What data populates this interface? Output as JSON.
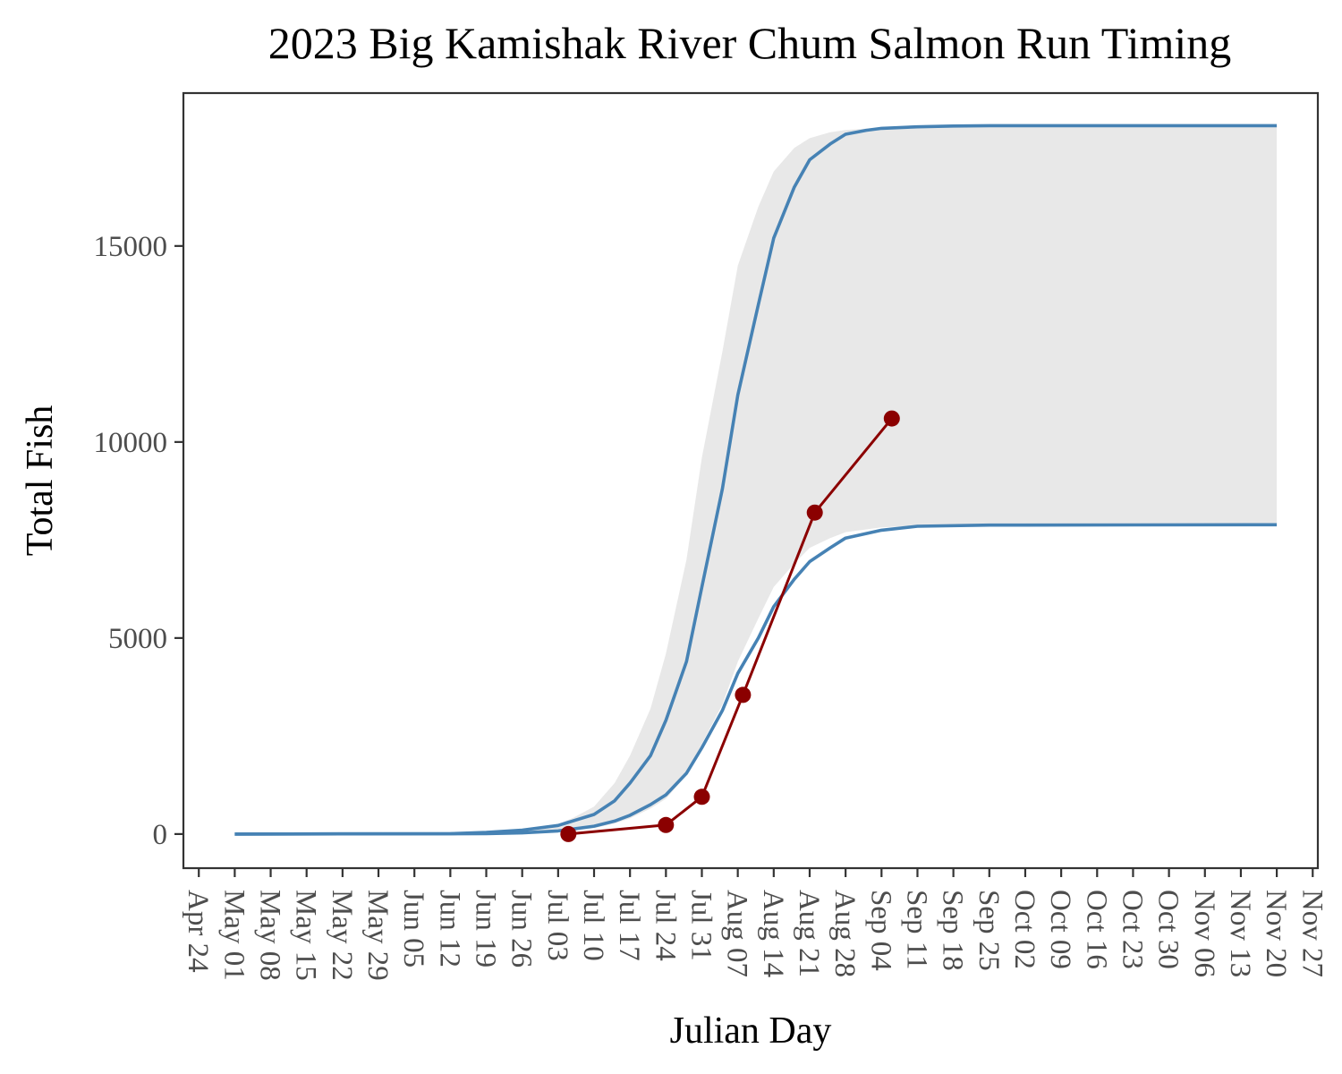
{
  "chart_data": {
    "type": "line",
    "title": "2023 Big Kamishak River Chum Salmon Run Timing",
    "xlabel": "Julian Day",
    "ylabel": "Total Fish",
    "x_axis": "date",
    "xlim": [
      "2023-04-21",
      "2023-11-28"
    ],
    "ylim": [
      -870,
      18900
    ],
    "y_ticks": [
      0,
      5000,
      10000,
      15000
    ],
    "x_ticks": [
      "2023-04-24",
      "2023-05-01",
      "2023-05-08",
      "2023-05-15",
      "2023-05-22",
      "2023-05-29",
      "2023-06-05",
      "2023-06-12",
      "2023-06-19",
      "2023-06-26",
      "2023-07-03",
      "2023-07-10",
      "2023-07-17",
      "2023-07-24",
      "2023-07-31",
      "2023-08-07",
      "2023-08-14",
      "2023-08-21",
      "2023-08-28",
      "2023-09-04",
      "2023-09-11",
      "2023-09-18",
      "2023-09-25",
      "2023-10-02",
      "2023-10-09",
      "2023-10-16",
      "2023-10-23",
      "2023-10-30",
      "2023-11-06",
      "2023-11-13",
      "2023-11-20",
      "2023-11-27"
    ],
    "x_tick_labels": [
      "Apr 24",
      "May 01",
      "May 08",
      "May 15",
      "May 22",
      "May 29",
      "Jun 05",
      "Jun 12",
      "Jun 19",
      "Jun 26",
      "Jul 03",
      "Jul 10",
      "Jul 17",
      "Jul 24",
      "Jul 31",
      "Aug 07",
      "Aug 14",
      "Aug 21",
      "Aug 28",
      "Sep 04",
      "Sep 11",
      "Sep 18",
      "Sep 25",
      "Oct 02",
      "Oct 09",
      "Oct 16",
      "Oct 23",
      "Oct 30",
      "Nov 06",
      "Nov 13",
      "Nov 20",
      "Nov 27"
    ],
    "grid": false,
    "colors": {
      "band": "#e8e8e8",
      "curve": "#4682b4",
      "observed": "#8b0000",
      "axis": "#333333",
      "tick_text": "#4d4d4d"
    },
    "band": {
      "x": [
        "2023-05-01",
        "2023-06-19",
        "2023-06-26",
        "2023-07-03",
        "2023-07-06",
        "2023-07-10",
        "2023-07-14",
        "2023-07-17",
        "2023-07-21",
        "2023-07-24",
        "2023-07-28",
        "2023-07-31",
        "2023-08-04",
        "2023-08-07",
        "2023-08-11",
        "2023-08-14",
        "2023-08-18",
        "2023-08-21",
        "2023-08-25",
        "2023-08-28",
        "2023-09-04",
        "2023-09-11",
        "2023-09-25",
        "2023-11-20"
      ],
      "upper": [
        0,
        30,
        100,
        250,
        420,
        700,
        1300,
        2000,
        3200,
        4600,
        7000,
        9600,
        12300,
        14500,
        16000,
        16900,
        17500,
        17750,
        17900,
        17960,
        18020,
        18050,
        18060,
        18060
      ],
      "lower": [
        0,
        0,
        20,
        50,
        80,
        150,
        270,
        400,
        650,
        900,
        1500,
        2300,
        3300,
        4400,
        5500,
        6300,
        6900,
        7300,
        7550,
        7700,
        7820,
        7870,
        7890,
        7900
      ]
    },
    "series": [
      {
        "x": [
          "2023-05-01",
          "2023-06-12",
          "2023-06-19",
          "2023-06-26",
          "2023-07-03",
          "2023-07-10",
          "2023-07-14",
          "2023-07-17",
          "2023-07-21",
          "2023-07-24",
          "2023-07-28",
          "2023-07-31",
          "2023-08-04",
          "2023-08-07",
          "2023-08-11",
          "2023-08-14",
          "2023-08-18",
          "2023-08-21",
          "2023-08-25",
          "2023-08-28",
          "2023-09-01",
          "2023-09-04",
          "2023-09-11",
          "2023-09-18",
          "2023-09-25",
          "2023-11-20"
        ],
        "values": [
          0,
          10,
          40,
          100,
          220,
          500,
          850,
          1300,
          2000,
          2900,
          4400,
          6300,
          8800,
          11200,
          13500,
          15200,
          16500,
          17200,
          17600,
          17850,
          17950,
          18000,
          18040,
          18060,
          18070,
          18070
        ]
      },
      {
        "x": [
          "2023-05-01",
          "2023-06-19",
          "2023-06-26",
          "2023-07-03",
          "2023-07-10",
          "2023-07-14",
          "2023-07-17",
          "2023-07-21",
          "2023-07-24",
          "2023-07-28",
          "2023-07-31",
          "2023-08-04",
          "2023-08-07",
          "2023-08-11",
          "2023-08-14",
          "2023-08-18",
          "2023-08-21",
          "2023-08-25",
          "2023-08-28",
          "2023-09-04",
          "2023-09-11",
          "2023-09-25",
          "2023-11-20"
        ],
        "values": [
          0,
          10,
          30,
          80,
          200,
          330,
          480,
          750,
          1000,
          1550,
          2200,
          3150,
          4100,
          5000,
          5800,
          6500,
          6950,
          7300,
          7550,
          7750,
          7850,
          7880,
          7890
        ]
      },
      {
        "x": [
          "2023-07-05",
          "2023-07-24",
          "2023-07-31",
          "2023-08-08",
          "2023-08-22",
          "2023-09-06"
        ],
        "values": [
          0,
          230,
          950,
          3550,
          8200,
          10600
        ],
        "markers": true
      }
    ]
  }
}
